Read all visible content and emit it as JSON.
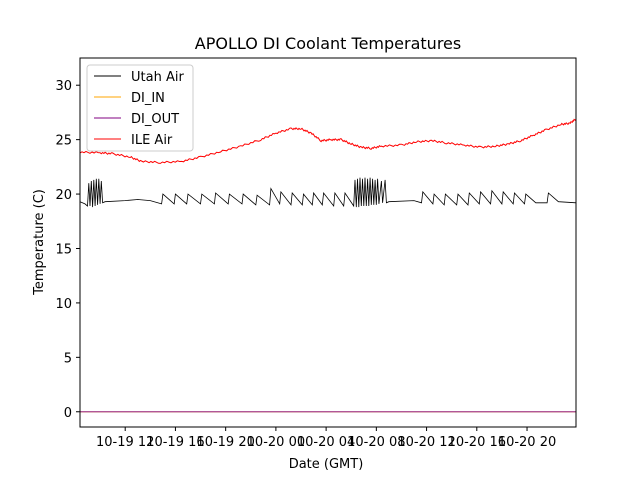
{
  "chart_data": {
    "type": "line",
    "title": "APOLLO DI Coolant Temperatures",
    "xlabel": "Date (GMT)",
    "ylabel": "Temperature (C)",
    "x_units": "hours since 10-19 00:00 GMT",
    "xlim": [
      8.4,
      47.9
    ],
    "ylim": [
      -1.4,
      32.5
    ],
    "grid": false,
    "legend_placement": "top-left",
    "x_ticks": [
      {
        "value": 12,
        "label": "10-19 12"
      },
      {
        "value": 16,
        "label": "10-19 16"
      },
      {
        "value": 20,
        "label": "10-19 20"
      },
      {
        "value": 24,
        "label": "10-20 00"
      },
      {
        "value": 28,
        "label": "10-20 04"
      },
      {
        "value": 32,
        "label": "10-20 08"
      },
      {
        "value": 36,
        "label": "10-20 12"
      },
      {
        "value": 40,
        "label": "10-20 16"
      },
      {
        "value": 44,
        "label": "10-20 20"
      }
    ],
    "y_ticks": [
      {
        "value": 0,
        "label": "0"
      },
      {
        "value": 5,
        "label": "5"
      },
      {
        "value": 10,
        "label": "10"
      },
      {
        "value": 15,
        "label": "15"
      },
      {
        "value": 20,
        "label": "20"
      },
      {
        "value": 25,
        "label": "25"
      },
      {
        "value": 30,
        "label": "30"
      }
    ],
    "series": [
      {
        "name": "Utah Air",
        "color": "#000000",
        "points": [
          [
            8.4,
            19.3
          ],
          [
            8.8,
            19.1
          ],
          [
            9.0,
            18.9
          ],
          [
            9.1,
            21.0
          ],
          [
            9.2,
            18.9
          ],
          [
            9.3,
            21.2
          ],
          [
            9.4,
            18.8
          ],
          [
            9.5,
            21.3
          ],
          [
            9.6,
            18.9
          ],
          [
            9.7,
            21.4
          ],
          [
            9.8,
            19.0
          ],
          [
            9.9,
            21.4
          ],
          [
            10.0,
            19.1
          ],
          [
            10.1,
            21.2
          ],
          [
            10.2,
            19.2
          ],
          [
            10.4,
            19.3
          ],
          [
            12.0,
            19.4
          ],
          [
            13.0,
            19.5
          ],
          [
            14.0,
            19.4
          ],
          [
            14.9,
            19.1
          ],
          [
            15.0,
            20.0
          ],
          [
            15.9,
            19.1
          ],
          [
            16.0,
            20.0
          ],
          [
            16.9,
            19.1
          ],
          [
            17.0,
            20.0
          ],
          [
            18.0,
            19.1
          ],
          [
            18.1,
            20.0
          ],
          [
            19.1,
            19.1
          ],
          [
            19.2,
            20.1
          ],
          [
            20.2,
            19.1
          ],
          [
            20.3,
            20.0
          ],
          [
            21.3,
            19.1
          ],
          [
            21.4,
            20.0
          ],
          [
            22.4,
            19.0
          ],
          [
            22.5,
            19.9
          ],
          [
            23.5,
            19.0
          ],
          [
            23.6,
            20.5
          ],
          [
            24.3,
            19.1
          ],
          [
            24.4,
            20.2
          ],
          [
            25.2,
            19.0
          ],
          [
            25.3,
            20.1
          ],
          [
            26.1,
            19.0
          ],
          [
            26.2,
            20.0
          ],
          [
            26.9,
            19.0
          ],
          [
            27.0,
            20.1
          ],
          [
            27.7,
            19.0
          ],
          [
            27.8,
            20.1
          ],
          [
            28.6,
            18.9
          ],
          [
            28.7,
            20.1
          ],
          [
            29.4,
            18.9
          ],
          [
            29.5,
            20.1
          ],
          [
            30.2,
            18.9
          ],
          [
            30.3,
            21.3
          ],
          [
            30.4,
            18.8
          ],
          [
            30.5,
            21.4
          ],
          [
            30.6,
            18.8
          ],
          [
            30.7,
            21.5
          ],
          [
            30.8,
            18.9
          ],
          [
            30.9,
            21.4
          ],
          [
            31.0,
            18.9
          ],
          [
            31.1,
            21.5
          ],
          [
            31.2,
            18.9
          ],
          [
            31.3,
            21.4
          ],
          [
            31.4,
            18.9
          ],
          [
            31.5,
            21.5
          ],
          [
            31.6,
            19.0
          ],
          [
            31.7,
            21.4
          ],
          [
            31.8,
            19.0
          ],
          [
            31.9,
            21.3
          ],
          [
            32.0,
            19.0
          ],
          [
            32.1,
            21.4
          ],
          [
            32.2,
            19.1
          ],
          [
            32.4,
            21.2
          ],
          [
            32.5,
            19.2
          ],
          [
            32.7,
            21.3
          ],
          [
            32.8,
            19.2
          ],
          [
            33.0,
            19.3
          ],
          [
            35.0,
            19.4
          ],
          [
            35.6,
            19.2
          ],
          [
            35.7,
            20.2
          ],
          [
            36.5,
            19.1
          ],
          [
            36.6,
            20.0
          ],
          [
            37.4,
            19.0
          ],
          [
            37.5,
            20.0
          ],
          [
            38.4,
            19.0
          ],
          [
            38.5,
            20.0
          ],
          [
            39.3,
            19.0
          ],
          [
            39.4,
            20.1
          ],
          [
            40.2,
            19.1
          ],
          [
            40.3,
            20.2
          ],
          [
            41.1,
            19.1
          ],
          [
            41.2,
            20.3
          ],
          [
            42.0,
            19.1
          ],
          [
            42.1,
            20.2
          ],
          [
            42.9,
            19.1
          ],
          [
            43.0,
            20.1
          ],
          [
            43.8,
            19.1
          ],
          [
            43.9,
            20.0
          ],
          [
            44.7,
            19.2
          ],
          [
            45.6,
            19.2
          ],
          [
            45.7,
            20.1
          ],
          [
            46.5,
            19.3
          ],
          [
            47.9,
            19.2
          ]
        ]
      },
      {
        "name": "DI_IN",
        "color": "#ffa500",
        "points": [
          [
            8.4,
            0
          ],
          [
            47.9,
            0
          ]
        ]
      },
      {
        "name": "DI_OUT",
        "color": "#800080",
        "points": [
          [
            8.4,
            0
          ],
          [
            47.9,
            0
          ]
        ]
      },
      {
        "name": "ILE Air",
        "color": "#ff0000",
        "points": [
          [
            8.4,
            23.85
          ],
          [
            10.0,
            23.8
          ],
          [
            11.0,
            23.7
          ],
          [
            12.4,
            23.4
          ],
          [
            13.3,
            23.0
          ],
          [
            14.8,
            22.9
          ],
          [
            16.5,
            23.0
          ],
          [
            18.0,
            23.4
          ],
          [
            19.6,
            23.9
          ],
          [
            21.2,
            24.4
          ],
          [
            22.8,
            25.0
          ],
          [
            24.0,
            25.6
          ],
          [
            25.2,
            26.0
          ],
          [
            26.0,
            26.0
          ],
          [
            26.8,
            25.6
          ],
          [
            27.6,
            24.9
          ],
          [
            28.4,
            25.0
          ],
          [
            29.2,
            25.0
          ],
          [
            30.0,
            24.6
          ],
          [
            30.8,
            24.3
          ],
          [
            31.6,
            24.2
          ],
          [
            32.4,
            24.4
          ],
          [
            34.0,
            24.5
          ],
          [
            35.2,
            24.8
          ],
          [
            36.4,
            24.9
          ],
          [
            37.6,
            24.7
          ],
          [
            39.0,
            24.5
          ],
          [
            40.3,
            24.3
          ],
          [
            41.5,
            24.4
          ],
          [
            42.5,
            24.6
          ],
          [
            43.5,
            24.9
          ],
          [
            44.5,
            25.4
          ],
          [
            45.5,
            25.9
          ],
          [
            46.7,
            26.4
          ],
          [
            47.4,
            26.5
          ],
          [
            47.9,
            26.9
          ]
        ]
      }
    ]
  }
}
